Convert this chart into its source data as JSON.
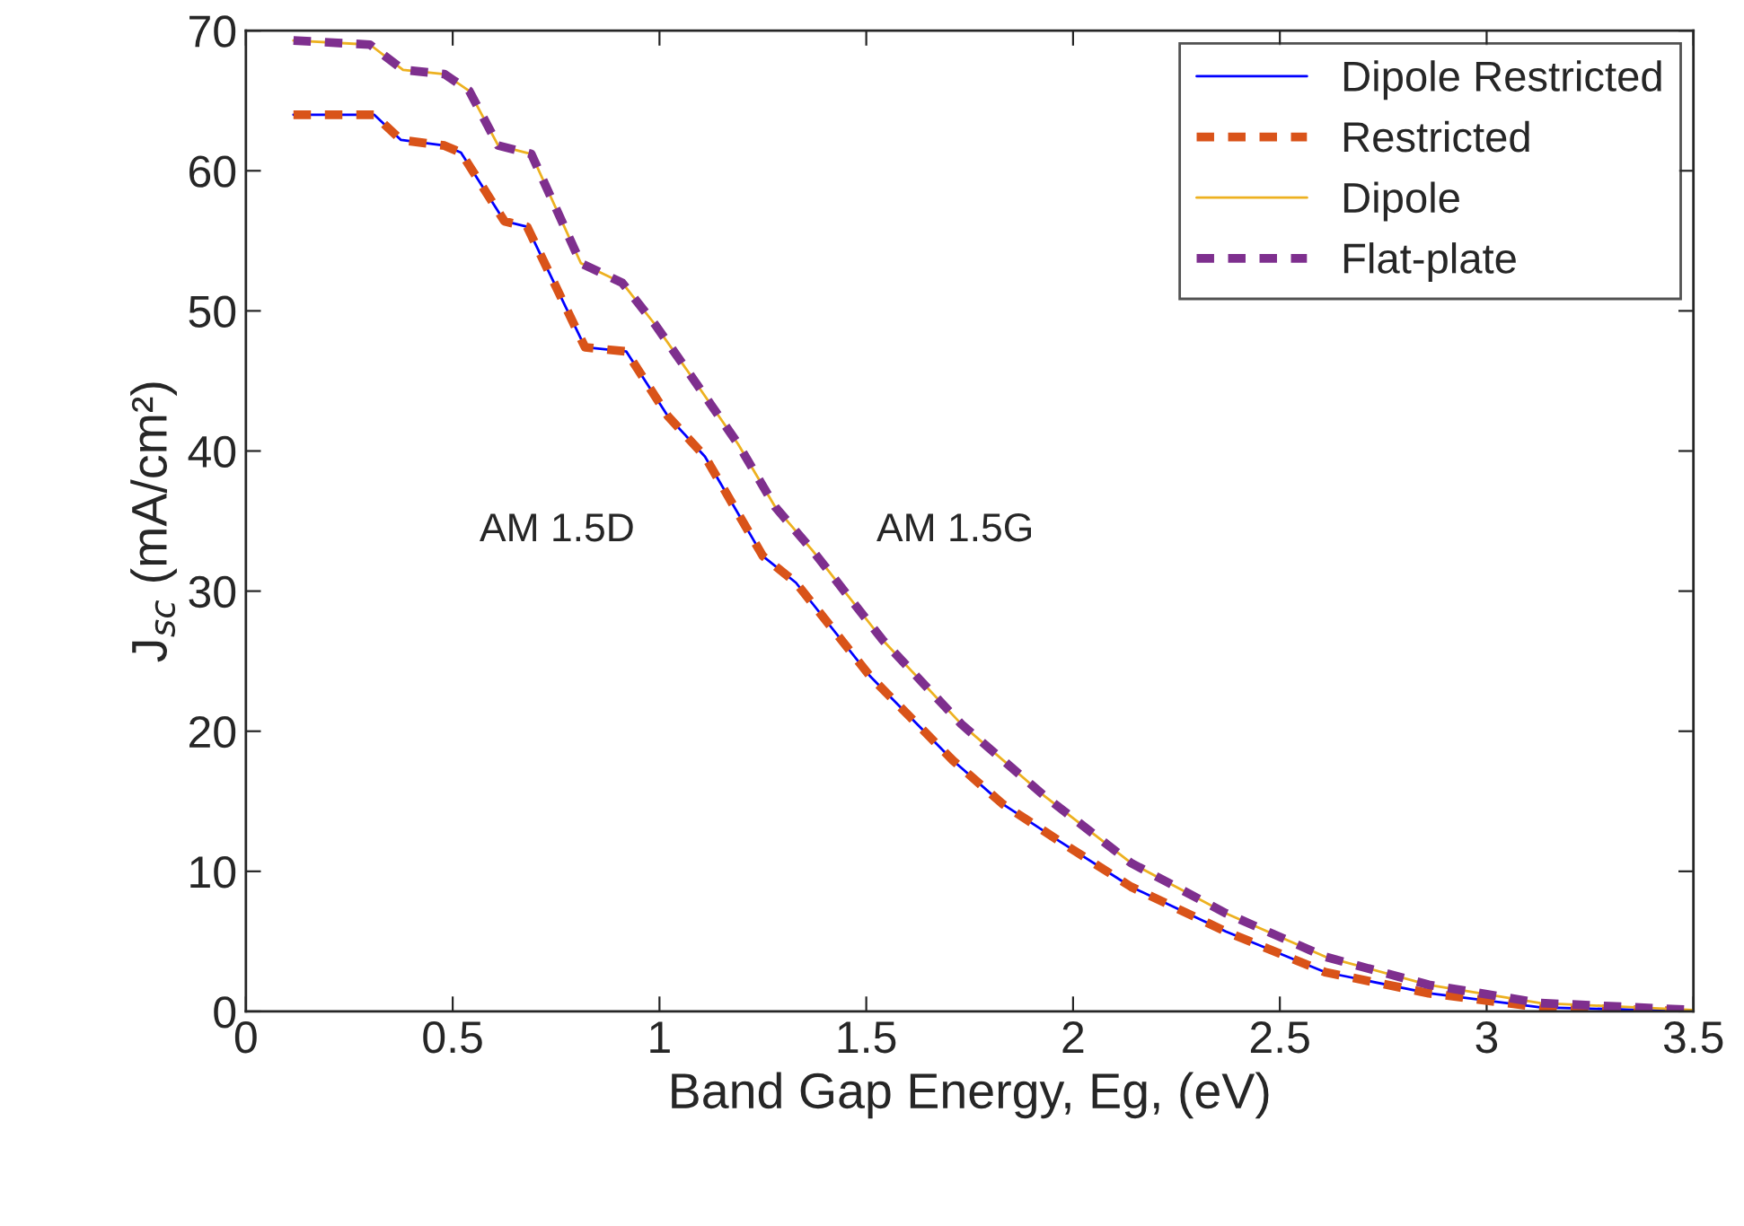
{
  "chart_data": {
    "type": "line",
    "xlabel": "Band Gap Energy, Eg, (eV)",
    "ylabel": "J$_{sc}$ (mA/cm²)",
    "xlim": [
      0,
      3.5
    ],
    "ylim": [
      0,
      70
    ],
    "xticks": [
      0,
      0.5,
      1,
      1.5,
      2,
      2.5,
      3,
      3.5
    ],
    "yticks": [
      0,
      10,
      20,
      30,
      40,
      50,
      60,
      70
    ],
    "grid": false,
    "legend": "top right",
    "annotations": [
      "AM 1.5D",
      "AM 1.5G"
    ],
    "series": [
      {
        "name": "Dipole Restricted",
        "color": "#0000ff",
        "line_style": "solid",
        "x": [
          0.115,
          0.31,
          0.375,
          0.48,
          0.52,
          0.625,
          0.68,
          0.82,
          0.92,
          1.02,
          1.11,
          1.25,
          1.33,
          1.51,
          1.71,
          1.83,
          1.97,
          2.14,
          2.37,
          2.61,
          2.86,
          3.13,
          3.5
        ],
        "values": [
          64.0,
          64.0,
          62.2,
          61.8,
          61.3,
          56.4,
          56.0,
          47.4,
          47.1,
          42.5,
          39.6,
          32.5,
          30.6,
          23.9,
          17.9,
          14.8,
          12.1,
          8.9,
          5.7,
          2.8,
          1.3,
          0.3,
          0
        ]
      },
      {
        "name": "Restricted",
        "color": "#d95319",
        "line_style": "dashed",
        "x": [
          0.115,
          0.31,
          0.375,
          0.48,
          0.52,
          0.625,
          0.68,
          0.82,
          0.92,
          1.02,
          1.11,
          1.25,
          1.33,
          1.51,
          1.71,
          1.83,
          1.97,
          2.14,
          2.37,
          2.61,
          2.86,
          3.13,
          3.5
        ],
        "values": [
          64.0,
          64.0,
          62.2,
          61.8,
          61.3,
          56.4,
          56.0,
          47.4,
          47.1,
          42.5,
          39.6,
          32.5,
          30.6,
          23.9,
          17.9,
          14.8,
          12.1,
          8.9,
          5.7,
          2.8,
          1.3,
          0.3,
          0
        ]
      },
      {
        "name": "Dipole",
        "color": "#edb120",
        "line_style": "solid",
        "x": [
          0.115,
          0.3,
          0.38,
          0.48,
          0.54,
          0.61,
          0.69,
          0.81,
          0.91,
          0.99,
          1.08,
          1.19,
          1.28,
          1.37,
          1.54,
          1.73,
          1.93,
          2.14,
          2.37,
          2.61,
          2.86,
          3.13,
          3.5
        ],
        "values": [
          69.3,
          69.0,
          67.2,
          66.9,
          65.7,
          61.8,
          61.2,
          53.4,
          52.0,
          49.0,
          45.2,
          40.5,
          36.0,
          32.9,
          26.5,
          20.5,
          15.4,
          10.6,
          7.0,
          3.9,
          1.9,
          0.6,
          0.1
        ]
      },
      {
        "name": "Flat-plate",
        "color": "#7e2f8e",
        "line_style": "dashed",
        "x": [
          0.115,
          0.3,
          0.38,
          0.48,
          0.54,
          0.61,
          0.69,
          0.81,
          0.91,
          0.99,
          1.08,
          1.19,
          1.28,
          1.37,
          1.54,
          1.73,
          1.93,
          2.14,
          2.37,
          2.61,
          2.86,
          3.13,
          3.5
        ],
        "values": [
          69.3,
          69.0,
          67.2,
          66.9,
          65.7,
          61.8,
          61.2,
          53.4,
          52.0,
          49.0,
          45.2,
          40.5,
          36.0,
          32.9,
          26.5,
          20.5,
          15.4,
          10.6,
          7.0,
          3.9,
          1.9,
          0.6,
          0.1
        ]
      }
    ]
  }
}
